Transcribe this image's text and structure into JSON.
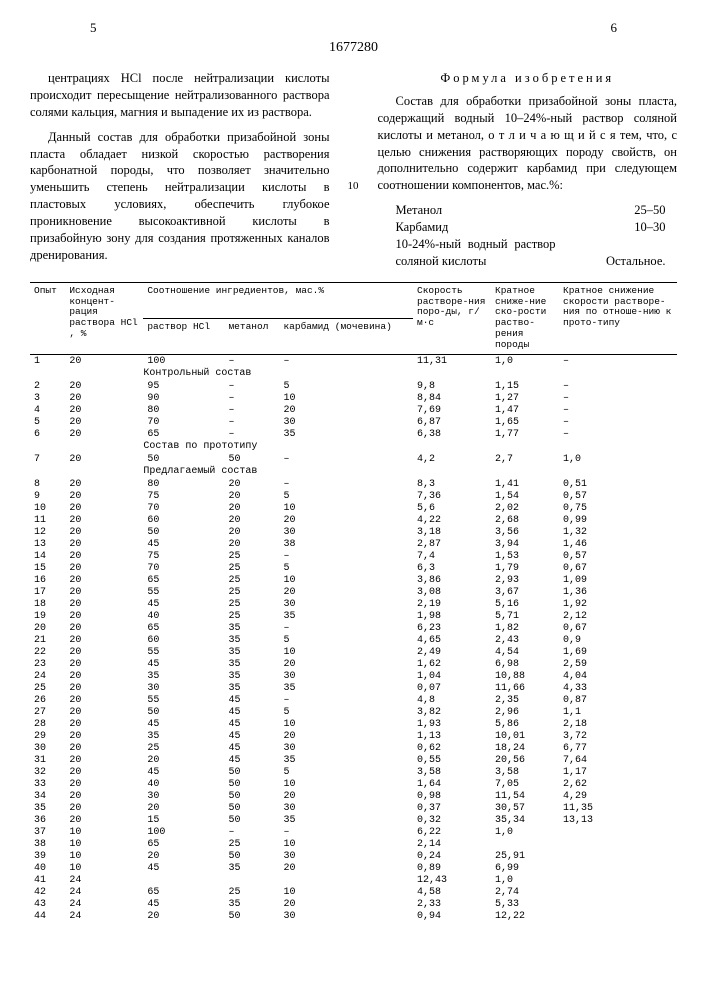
{
  "page_left": "5",
  "page_right": "6",
  "patent_number": "1677280",
  "line_marker": "10",
  "left_col": {
    "p1": "центрациях HCl после нейтрализации кислоты происходит пересыщение нейтрализованного раствора солями кальция, магния и выпадение их из раствора.",
    "p2": "Данный состав для обработки призабойной зоны пласта обладает низкой скоростью растворения карбонатной породы, что позволяет значительно уменьшить степень нейтрализации кислоты в пластовых условиях, обеспечить глубокое проникновение высокоактивной кислоты в призабойную зону для создания протяженных каналов дренирования."
  },
  "right_col": {
    "formula_title": "Формула изобретения",
    "p1": "Состав для обработки призабойной зоны пласта, содержащий водный 10–24%-ный раствор соляной кислоты и метанол, о т л и ч а ю щ и й с я  тем, что, с целью снижения растворяющих породу свойств, он дополнительно содержит карбамид при следующем соотношении компонентов, мас.%:",
    "components": [
      {
        "name": "Метанол",
        "val": "25–50"
      },
      {
        "name": "Карбамид",
        "val": "10–30"
      },
      {
        "name": "10-24%-ный водный раствор соляной кислоты",
        "val": "Остальное."
      }
    ]
  },
  "table": {
    "headers": {
      "c1": "Опыт",
      "c2": "Исходная концент-рация раствора HCl , %",
      "c3_top": "Соотношение ингредиентов, мас.%",
      "c3a": "раствор HCl",
      "c3b": "метанол",
      "c3c": "карбамид (мочевина)",
      "c4": "Скорость растворе-ния поро-ды, г/м·с",
      "c5": "Кратное сниже-ние ско-рости раство-рения породы",
      "c6": "Кратное снижение скорости растворе-ния по отноше-нию к прото-типу"
    },
    "sections": {
      "s1": "Контрольный состав",
      "s2": "Состав по прототипу",
      "s3": "Предлагаемый состав"
    },
    "rows": [
      {
        "n": "1",
        "hcl": "20",
        "r": "100",
        "m": "–",
        "k": "–",
        "v": "11,31",
        "kr": "1,0",
        "kp": "–"
      },
      {
        "section": "s1"
      },
      {
        "n": "2",
        "hcl": "20",
        "r": "95",
        "m": "–",
        "k": "5",
        "v": "9,8",
        "kr": "1,15",
        "kp": "–"
      },
      {
        "n": "3",
        "hcl": "20",
        "r": "90",
        "m": "–",
        "k": "10",
        "v": "8,84",
        "kr": "1,27",
        "kp": "–"
      },
      {
        "n": "4",
        "hcl": "20",
        "r": "80",
        "m": "–",
        "k": "20",
        "v": "7,69",
        "kr": "1,47",
        "kp": "–"
      },
      {
        "n": "5",
        "hcl": "20",
        "r": "70",
        "m": "–",
        "k": "30",
        "v": "6,87",
        "kr": "1,65",
        "kp": "–"
      },
      {
        "n": "6",
        "hcl": "20",
        "r": "65",
        "m": "–",
        "k": "35",
        "v": "6,38",
        "kr": "1,77",
        "kp": "–"
      },
      {
        "section": "s2"
      },
      {
        "n": "7",
        "hcl": "20",
        "r": "50",
        "m": "50",
        "k": "–",
        "v": "4,2",
        "kr": "2,7",
        "kp": "1,0"
      },
      {
        "section": "s3"
      },
      {
        "n": "8",
        "hcl": "20",
        "r": "80",
        "m": "20",
        "k": "–",
        "v": "8,3",
        "kr": "1,41",
        "kp": "0,51"
      },
      {
        "n": "9",
        "hcl": "20",
        "r": "75",
        "m": "20",
        "k": "5",
        "v": "7,36",
        "kr": "1,54",
        "kp": "0,57"
      },
      {
        "n": "10",
        "hcl": "20",
        "r": "70",
        "m": "20",
        "k": "10",
        "v": "5,6",
        "kr": "2,02",
        "kp": "0,75"
      },
      {
        "n": "11",
        "hcl": "20",
        "r": "60",
        "m": "20",
        "k": "20",
        "v": "4,22",
        "kr": "2,68",
        "kp": "0,99"
      },
      {
        "n": "12",
        "hcl": "20",
        "r": "50",
        "m": "20",
        "k": "30",
        "v": "3,18",
        "kr": "3,56",
        "kp": "1,32"
      },
      {
        "n": "13",
        "hcl": "20",
        "r": "45",
        "m": "20",
        "k": "38",
        "v": "2,87",
        "kr": "3,94",
        "kp": "1,46"
      },
      {
        "n": "14",
        "hcl": "20",
        "r": "75",
        "m": "25",
        "k": "–",
        "v": "7,4",
        "kr": "1,53",
        "kp": "0,57"
      },
      {
        "n": "15",
        "hcl": "20",
        "r": "70",
        "m": "25",
        "k": "5",
        "v": "6,3",
        "kr": "1,79",
        "kp": "0,67"
      },
      {
        "n": "16",
        "hcl": "20",
        "r": "65",
        "m": "25",
        "k": "10",
        "v": "3,86",
        "kr": "2,93",
        "kp": "1,09"
      },
      {
        "n": "17",
        "hcl": "20",
        "r": "55",
        "m": "25",
        "k": "20",
        "v": "3,08",
        "kr": "3,67",
        "kp": "1,36"
      },
      {
        "n": "18",
        "hcl": "20",
        "r": "45",
        "m": "25",
        "k": "30",
        "v": "2,19",
        "kr": "5,16",
        "kp": "1,92"
      },
      {
        "n": "19",
        "hcl": "20",
        "r": "40",
        "m": "25",
        "k": "35",
        "v": "1,98",
        "kr": "5,71",
        "kp": "2,12"
      },
      {
        "n": "20",
        "hcl": "20",
        "r": "65",
        "m": "35",
        "k": "–",
        "v": "6,23",
        "kr": "1,82",
        "kp": "0,67"
      },
      {
        "n": "21",
        "hcl": "20",
        "r": "60",
        "m": "35",
        "k": "5",
        "v": "4,65",
        "kr": "2,43",
        "kp": "0,9"
      },
      {
        "n": "22",
        "hcl": "20",
        "r": "55",
        "m": "35",
        "k": "10",
        "v": "2,49",
        "kr": "4,54",
        "kp": "1,69"
      },
      {
        "n": "23",
        "hcl": "20",
        "r": "45",
        "m": "35",
        "k": "20",
        "v": "1,62",
        "kr": "6,98",
        "kp": "2,59"
      },
      {
        "n": "24",
        "hcl": "20",
        "r": "35",
        "m": "35",
        "k": "30",
        "v": "1,04",
        "kr": "10,88",
        "kp": "4,04"
      },
      {
        "n": "25",
        "hcl": "20",
        "r": "30",
        "m": "35",
        "k": "35",
        "v": "0,07",
        "kr": "11,66",
        "kp": "4,33"
      },
      {
        "n": "26",
        "hcl": "20",
        "r": "55",
        "m": "45",
        "k": "–",
        "v": "4,8",
        "kr": "2,35",
        "kp": "0,87"
      },
      {
        "n": "27",
        "hcl": "20",
        "r": "50",
        "m": "45",
        "k": "5",
        "v": "3,82",
        "kr": "2,96",
        "kp": "1,1"
      },
      {
        "n": "28",
        "hcl": "20",
        "r": "45",
        "m": "45",
        "k": "10",
        "v": "1,93",
        "kr": "5,86",
        "kp": "2,18"
      },
      {
        "n": "29",
        "hcl": "20",
        "r": "35",
        "m": "45",
        "k": "20",
        "v": "1,13",
        "kr": "10,01",
        "kp": "3,72"
      },
      {
        "n": "30",
        "hcl": "20",
        "r": "25",
        "m": "45",
        "k": "30",
        "v": "0,62",
        "kr": "18,24",
        "kp": "6,77"
      },
      {
        "n": "31",
        "hcl": "20",
        "r": "20",
        "m": "45",
        "k": "35",
        "v": "0,55",
        "kr": "20,56",
        "kp": "7,64"
      },
      {
        "n": "32",
        "hcl": "20",
        "r": "45",
        "m": "50",
        "k": "5",
        "v": "3,58",
        "kr": "3,58",
        "kp": "1,17"
      },
      {
        "n": "33",
        "hcl": "20",
        "r": "40",
        "m": "50",
        "k": "10",
        "v": "1,64",
        "kr": "7,05",
        "kp": "2,62"
      },
      {
        "n": "34",
        "hcl": "20",
        "r": "30",
        "m": "50",
        "k": "20",
        "v": "0,98",
        "kr": "11,54",
        "kp": "4,29"
      },
      {
        "n": "35",
        "hcl": "20",
        "r": "20",
        "m": "50",
        "k": "30",
        "v": "0,37",
        "kr": "30,57",
        "kp": "11,35"
      },
      {
        "n": "36",
        "hcl": "20",
        "r": "15",
        "m": "50",
        "k": "35",
        "v": "0,32",
        "kr": "35,34",
        "kp": "13,13"
      },
      {
        "n": "37",
        "hcl": "10",
        "r": "100",
        "m": "–",
        "k": "–",
        "v": "6,22",
        "kr": "1,0",
        "kp": ""
      },
      {
        "n": "38",
        "hcl": "10",
        "r": "65",
        "m": "25",
        "k": "10",
        "v": "2,14",
        "kr": "",
        "kp": ""
      },
      {
        "n": "39",
        "hcl": "10",
        "r": "20",
        "m": "50",
        "k": "30",
        "v": "0,24",
        "kr": "25,91",
        "kp": ""
      },
      {
        "n": "40",
        "hcl": "10",
        "r": "45",
        "m": "35",
        "k": "20",
        "v": "0,89",
        "kr": "6,99",
        "kp": ""
      },
      {
        "n": "41",
        "hcl": "24",
        "r": "",
        "m": "",
        "k": "",
        "v": "12,43",
        "kr": "1,0",
        "kp": ""
      },
      {
        "n": "42",
        "hcl": "24",
        "r": "65",
        "m": "25",
        "k": "10",
        "v": "4,58",
        "kr": "2,74",
        "kp": ""
      },
      {
        "n": "43",
        "hcl": "24",
        "r": "45",
        "m": "35",
        "k": "20",
        "v": "2,33",
        "kr": "5,33",
        "kp": ""
      },
      {
        "n": "44",
        "hcl": "24",
        "r": "20",
        "m": "50",
        "k": "30",
        "v": "0,94",
        "kr": "12,22",
        "kp": ""
      }
    ]
  }
}
